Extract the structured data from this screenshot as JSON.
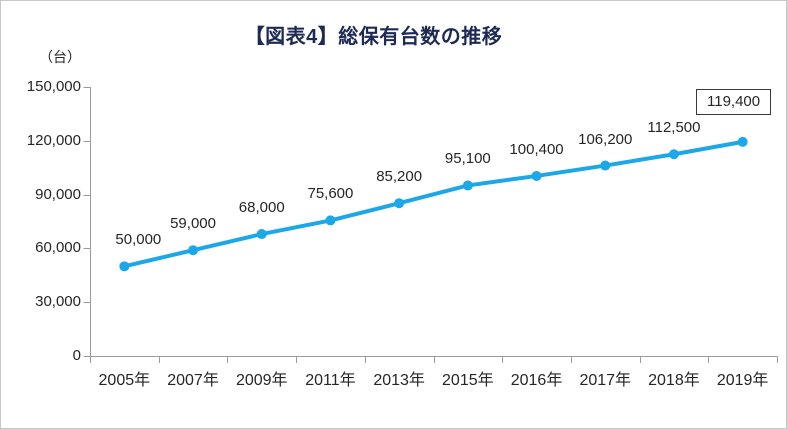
{
  "chart_data": {
    "type": "line",
    "title": "【図表4】総保有台数の推移",
    "y_axis_unit": "（台）",
    "categories": [
      "2005年",
      "2007年",
      "2009年",
      "2011年",
      "2013年",
      "2015年",
      "2016年",
      "2017年",
      "2018年",
      "2019年"
    ],
    "values": [
      50000,
      59000,
      68000,
      75600,
      85200,
      95100,
      100400,
      106200,
      112500,
      119400
    ],
    "data_labels": [
      "50,000",
      "59,000",
      "68,000",
      "75,600",
      "85,200",
      "95,100",
      "100,400",
      "106,200",
      "112,500",
      "119,400"
    ],
    "y_tick_labels": [
      "0",
      "30,000",
      "60,000",
      "90,000",
      "120,000",
      "150,000"
    ],
    "y_tick_values": [
      0,
      30000,
      60000,
      90000,
      120000,
      150000
    ],
    "ylim": [
      0,
      150000
    ],
    "grid": false,
    "legend": false,
    "last_point_boxed": true,
    "colors": {
      "line": "#1ba7e8",
      "title_text": "#1d2a55",
      "label_text": "#262626",
      "axis_line": "#9b9b9b",
      "box_border": "#3a3a3a"
    }
  }
}
